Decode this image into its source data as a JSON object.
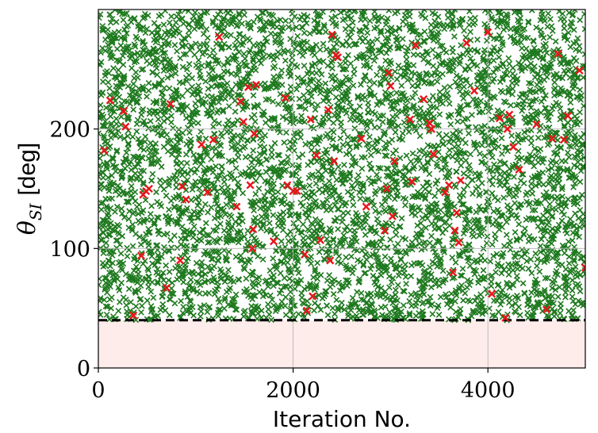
{
  "chart_data": {
    "type": "scatter",
    "xlabel": "Iteration No.",
    "ylabel_symbol": "θ",
    "ylabel_subscript": "SI",
    "ylabel_unit": "[deg]",
    "xlim": [
      0,
      5000
    ],
    "ylim": [
      0,
      300
    ],
    "xticks": [
      0,
      2000,
      4000
    ],
    "xtick_labels": [
      "0",
      "2000",
      "4000"
    ],
    "yticks": [
      0,
      100,
      200
    ],
    "ytick_labels": [
      "0",
      "100",
      "200"
    ],
    "grid": true,
    "threshold": {
      "y": 40,
      "style": "dashed",
      "color": "#000000"
    },
    "infeasible_region": {
      "y_from": 0,
      "y_to": 40,
      "color": "#fdecea"
    },
    "colors": {
      "main": "#1f7a1f",
      "highlight": "#e8161b"
    },
    "main_series": {
      "x_range": [
        0,
        5000
      ],
      "y_range": [
        40,
        300
      ],
      "count": 5000,
      "marker": "x"
    },
    "highlight_series": {
      "marker": "x",
      "points": [
        [
          60,
          182
        ],
        [
          120,
          224
        ],
        [
          260,
          215
        ],
        [
          280,
          202
        ],
        [
          360,
          44
        ],
        [
          440,
          94
        ],
        [
          460,
          145
        ],
        [
          490,
          148
        ],
        [
          520,
          150
        ],
        [
          700,
          67
        ],
        [
          740,
          221
        ],
        [
          840,
          90
        ],
        [
          860,
          152
        ],
        [
          900,
          141
        ],
        [
          1060,
          187
        ],
        [
          1120,
          147
        ],
        [
          1180,
          191
        ],
        [
          1240,
          277
        ],
        [
          1420,
          135
        ],
        [
          1460,
          223
        ],
        [
          1490,
          206
        ],
        [
          1540,
          235
        ],
        [
          1560,
          153
        ],
        [
          1580,
          100
        ],
        [
          1590,
          116
        ],
        [
          1600,
          196
        ],
        [
          1620,
          237
        ],
        [
          1800,
          106
        ],
        [
          1920,
          226
        ],
        [
          1940,
          153
        ],
        [
          2000,
          148
        ],
        [
          2040,
          148
        ],
        [
          2120,
          95
        ],
        [
          2140,
          48
        ],
        [
          2180,
          208
        ],
        [
          2200,
          60
        ],
        [
          2240,
          178
        ],
        [
          2280,
          107
        ],
        [
          2360,
          216
        ],
        [
          2380,
          90
        ],
        [
          2400,
          279
        ],
        [
          2420,
          173
        ],
        [
          2440,
          262
        ],
        [
          2460,
          260
        ],
        [
          2700,
          192
        ],
        [
          2750,
          135
        ],
        [
          2940,
          115
        ],
        [
          2960,
          150
        ],
        [
          2980,
          247
        ],
        [
          3000,
          236
        ],
        [
          3020,
          127
        ],
        [
          3040,
          173
        ],
        [
          3200,
          208
        ],
        [
          3220,
          156
        ],
        [
          3260,
          270
        ],
        [
          3340,
          225
        ],
        [
          3400,
          205
        ],
        [
          3420,
          200
        ],
        [
          3440,
          179
        ],
        [
          3560,
          147
        ],
        [
          3600,
          153
        ],
        [
          3640,
          80
        ],
        [
          3660,
          115
        ],
        [
          3680,
          130
        ],
        [
          3700,
          105
        ],
        [
          3720,
          157
        ],
        [
          3780,
          272
        ],
        [
          3860,
          232
        ],
        [
          4000,
          281
        ],
        [
          4040,
          62
        ],
        [
          4120,
          209
        ],
        [
          4180,
          42
        ],
        [
          4200,
          200
        ],
        [
          4220,
          212
        ],
        [
          4260,
          185
        ],
        [
          4320,
          166
        ],
        [
          4500,
          204
        ],
        [
          4600,
          49
        ],
        [
          4660,
          192
        ],
        [
          4720,
          263
        ],
        [
          4780,
          191
        ],
        [
          4820,
          211
        ],
        [
          4940,
          249
        ],
        [
          5000,
          84
        ]
      ]
    }
  }
}
